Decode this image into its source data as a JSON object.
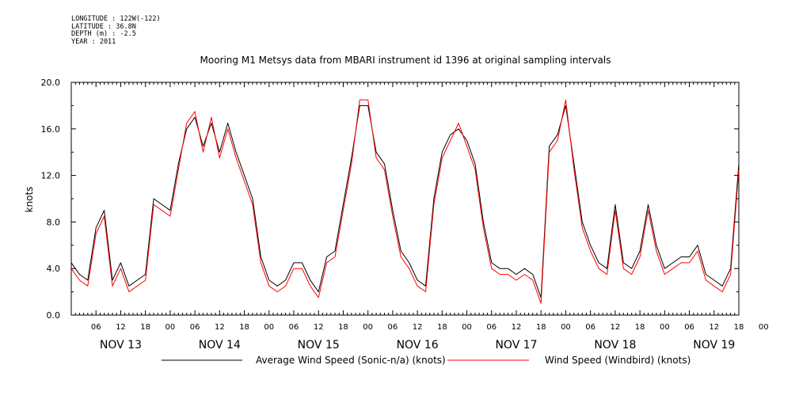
{
  "metadata": {
    "longitude": "LONGITUDE : 122W(-122)",
    "latitude": "LATITUDE : 36.8N",
    "depth": "DEPTH (m) : -2.5",
    "year": "YEAR : 2011"
  },
  "chart_data": {
    "type": "line",
    "title": "Mooring M1 Metsys data from MBARI instrument id 1396 at original sampling intervals",
    "xlabel": "",
    "ylabel": "knots",
    "ylim": [
      0,
      20
    ],
    "yticks": [
      "0.0",
      "4.0",
      "8.0",
      "12.0",
      "16.0",
      "20.0"
    ],
    "xlim_hours": [
      0,
      162
    ],
    "hour_ticks": [
      "06",
      "12",
      "18",
      "00",
      "06",
      "12",
      "18",
      "00",
      "06",
      "12",
      "18",
      "00",
      "06",
      "12",
      "18",
      "00",
      "06",
      "12",
      "18",
      "00",
      "06",
      "12",
      "18",
      "00",
      "06",
      "12",
      "18",
      "00"
    ],
    "day_labels": [
      "NOV 13",
      "NOV 14",
      "NOV 15",
      "NOV 16",
      "NOV 17",
      "NOV 18",
      "NOV 19"
    ],
    "x_unit": "hours since NOV 13 00:00",
    "grid": false,
    "legend_position": "bottom",
    "series": [
      {
        "name": "Average Wind Speed (Sonic-n/a) (knots)",
        "color": "#000000",
        "x": [
          0,
          2,
          4,
          6,
          8,
          10,
          12,
          14,
          16,
          18,
          20,
          22,
          24,
          26,
          28,
          30,
          32,
          34,
          36,
          38,
          40,
          42,
          44,
          46,
          48,
          50,
          52,
          54,
          56,
          58,
          60,
          62,
          64,
          66,
          68,
          70,
          72,
          74,
          76,
          78,
          80,
          82,
          84,
          86,
          88,
          90,
          92,
          94,
          96,
          98,
          100,
          102,
          104,
          106,
          108,
          110,
          112,
          114,
          116,
          118,
          120,
          122,
          124,
          126,
          128,
          130,
          132,
          134,
          136,
          138,
          140,
          142,
          144,
          146,
          148,
          150,
          152,
          154,
          156,
          158,
          160,
          162
        ],
        "values": [
          4.5,
          3.5,
          3.0,
          7.5,
          9.0,
          3.0,
          4.5,
          2.5,
          3.0,
          3.5,
          10.0,
          9.5,
          9.0,
          13.0,
          16.0,
          17.0,
          14.5,
          16.5,
          14.0,
          16.5,
          14.0,
          12.0,
          10.0,
          5.0,
          3.0,
          2.5,
          3.0,
          4.5,
          4.5,
          3.0,
          2.0,
          5.0,
          5.5,
          9.5,
          13.5,
          18.0,
          18.0,
          14.0,
          13.0,
          9.0,
          5.5,
          4.5,
          3.0,
          2.5,
          10.0,
          14.0,
          15.5,
          16.0,
          15.0,
          13.0,
          8.0,
          4.5,
          4.0,
          4.0,
          3.5,
          4.0,
          3.5,
          1.5,
          14.5,
          15.5,
          18.0,
          13.0,
          8.0,
          6.0,
          4.5,
          4.0,
          9.5,
          4.5,
          4.0,
          5.5,
          9.5,
          6.0,
          4.0,
          4.5,
          5.0,
          5.0,
          6.0,
          3.5,
          3.0,
          2.5,
          4.0,
          13.0
        ]
      },
      {
        "name": "Wind Speed (Windbird) (knots)",
        "color": "#ff0000",
        "x": [
          0,
          2,
          4,
          6,
          8,
          10,
          12,
          14,
          16,
          18,
          20,
          22,
          24,
          26,
          28,
          30,
          32,
          34,
          36,
          38,
          40,
          42,
          44,
          46,
          48,
          50,
          52,
          54,
          56,
          58,
          60,
          62,
          64,
          66,
          68,
          70,
          72,
          74,
          76,
          78,
          80,
          82,
          84,
          86,
          88,
          90,
          92,
          94,
          96,
          98,
          100,
          102,
          104,
          106,
          108,
          110,
          112,
          114,
          116,
          118,
          120,
          122,
          124,
          126,
          128,
          130,
          132,
          134,
          136,
          138,
          140,
          142,
          144,
          146,
          148,
          150,
          152,
          154,
          156,
          158,
          160,
          162
        ],
        "values": [
          4.0,
          3.0,
          2.5,
          7.0,
          8.5,
          2.5,
          4.0,
          2.0,
          2.5,
          3.0,
          9.5,
          9.0,
          8.5,
          12.5,
          16.5,
          17.5,
          14.0,
          17.0,
          13.5,
          16.0,
          13.5,
          11.5,
          9.5,
          4.5,
          2.5,
          2.0,
          2.5,
          4.0,
          4.0,
          2.5,
          1.5,
          4.5,
          5.0,
          9.0,
          13.0,
          18.5,
          18.5,
          13.5,
          12.5,
          8.5,
          5.0,
          4.0,
          2.5,
          2.0,
          9.5,
          13.5,
          15.0,
          16.5,
          14.5,
          12.5,
          7.5,
          4.0,
          3.5,
          3.5,
          3.0,
          3.5,
          3.0,
          1.0,
          14.0,
          15.0,
          18.5,
          12.5,
          7.5,
          5.5,
          4.0,
          3.5,
          9.0,
          4.0,
          3.5,
          5.0,
          9.0,
          5.5,
          3.5,
          4.0,
          4.5,
          4.5,
          5.5,
          3.0,
          2.5,
          2.0,
          3.5,
          12.5
        ]
      }
    ]
  }
}
